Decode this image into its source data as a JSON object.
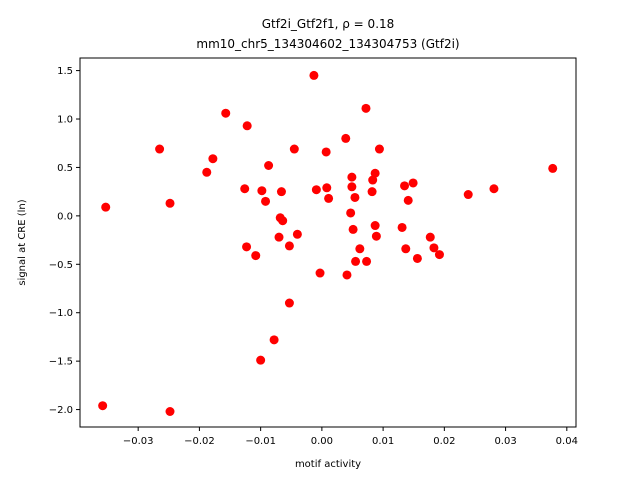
{
  "chart_data": {
    "type": "scatter",
    "title_line1": "Gtf2i_Gtf2f1, ρ = 0.18",
    "title_line2": "mm10_chr5_134304602_134304753 (Gtf2i)",
    "xlabel": "motif activity",
    "ylabel": "signal at CRE (ln)",
    "xlim": [
      -0.0395,
      0.0415
    ],
    "ylim": [
      -2.18,
      1.63
    ],
    "xticks": [
      -0.03,
      -0.02,
      -0.01,
      0.0,
      0.01,
      0.02,
      0.03,
      0.04
    ],
    "xtick_labels": [
      "−0.03",
      "−0.02",
      "−0.01",
      "0.00",
      "0.01",
      "0.02",
      "0.03",
      "0.04"
    ],
    "yticks": [
      -2.0,
      -1.5,
      -1.0,
      -0.5,
      0.0,
      0.5,
      1.0,
      1.5
    ],
    "ytick_labels": [
      "−2.0",
      "−1.5",
      "−1.0",
      "−0.5",
      "0.0",
      "0.5",
      "1.0",
      "1.5"
    ],
    "grid": false,
    "marker_color": "#ff0000",
    "points": [
      [
        -0.0353,
        0.09
      ],
      [
        -0.0358,
        -1.96
      ],
      [
        -0.0265,
        0.69
      ],
      [
        -0.0248,
        0.13
      ],
      [
        -0.0248,
        -2.02
      ],
      [
        -0.0188,
        0.45
      ],
      [
        -0.0178,
        0.59
      ],
      [
        -0.0157,
        1.06
      ],
      [
        -0.0122,
        0.93
      ],
      [
        -0.0126,
        0.28
      ],
      [
        -0.0123,
        -0.32
      ],
      [
        -0.0108,
        -0.41
      ],
      [
        -0.0098,
        0.26
      ],
      [
        -0.0092,
        0.15
      ],
      [
        -0.0087,
        0.52
      ],
      [
        -0.01,
        -1.49
      ],
      [
        -0.0078,
        -1.28
      ],
      [
        -0.007,
        -0.22
      ],
      [
        -0.0068,
        -0.02
      ],
      [
        -0.0066,
        0.25
      ],
      [
        -0.0064,
        -0.05
      ],
      [
        -0.0053,
        -0.31
      ],
      [
        -0.0053,
        -0.9
      ],
      [
        -0.0045,
        0.69
      ],
      [
        -0.004,
        -0.19
      ],
      [
        -0.0013,
        1.45
      ],
      [
        -0.0009,
        0.27
      ],
      [
        -0.0003,
        -0.59
      ],
      [
        0.0007,
        0.66
      ],
      [
        0.0008,
        0.29
      ],
      [
        0.0011,
        0.18
      ],
      [
        0.0039,
        0.8
      ],
      [
        0.0041,
        -0.61
      ],
      [
        0.0047,
        0.03
      ],
      [
        0.0049,
        0.3
      ],
      [
        0.0049,
        0.4
      ],
      [
        0.0051,
        -0.14
      ],
      [
        0.0054,
        0.19
      ],
      [
        0.0055,
        -0.47
      ],
      [
        0.0062,
        -0.34
      ],
      [
        0.0072,
        1.11
      ],
      [
        0.0073,
        -0.47
      ],
      [
        0.0082,
        0.25
      ],
      [
        0.0083,
        0.37
      ],
      [
        0.0087,
        0.44
      ],
      [
        0.0087,
        -0.1
      ],
      [
        0.0089,
        -0.21
      ],
      [
        0.0094,
        0.69
      ],
      [
        0.0131,
        -0.12
      ],
      [
        0.0135,
        0.31
      ],
      [
        0.0137,
        -0.34
      ],
      [
        0.0141,
        0.16
      ],
      [
        0.0149,
        0.34
      ],
      [
        0.0156,
        -0.44
      ],
      [
        0.0177,
        -0.22
      ],
      [
        0.0183,
        -0.33
      ],
      [
        0.0192,
        -0.4
      ],
      [
        0.0239,
        0.22
      ],
      [
        0.0281,
        0.28
      ],
      [
        0.0377,
        0.49
      ]
    ]
  }
}
